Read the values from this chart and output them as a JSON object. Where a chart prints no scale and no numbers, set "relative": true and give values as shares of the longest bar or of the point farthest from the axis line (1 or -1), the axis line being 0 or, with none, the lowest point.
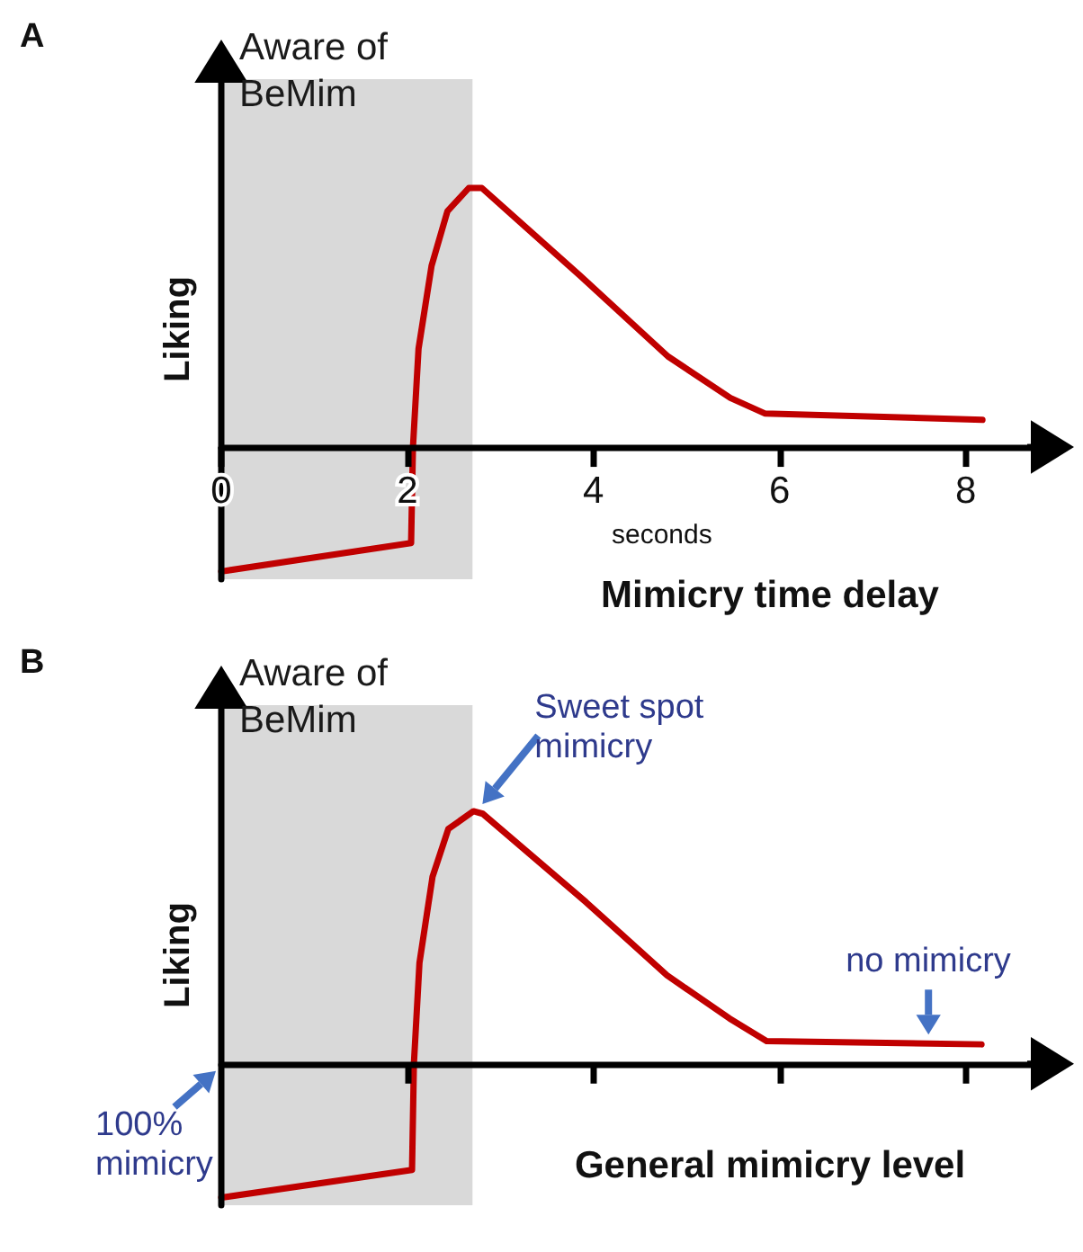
{
  "chart_data": [
    {
      "type": "line",
      "title": "A",
      "xlabel": "Mimicry time delay",
      "ylabel": "Liking",
      "relative": true,
      "color": "#c00000",
      "marker": "none",
      "xlim": [
        0,
        8.7
      ],
      "xticks": [
        0,
        2,
        4,
        6,
        8
      ],
      "x": [
        0,
        2.04,
        2.06,
        2.12,
        2.26,
        2.43,
        2.66,
        2.8,
        3.86,
        4.8,
        5.47,
        5.84,
        8.18
      ],
      "values": [
        -0.48,
        -0.37,
        0,
        0.38,
        0.7,
        0.91,
        1,
        1,
        0.66,
        0.35,
        0.19,
        0.13,
        0.105
      ],
      "bands": [
        {
          "axis": "x",
          "from": 0,
          "to": 2.7,
          "label": "Aware of BeMim",
          "color": "#d9d9d9"
        }
      ],
      "annotations": [
        "seconds"
      ]
    },
    {
      "type": "line",
      "title": "B",
      "xlabel": "General mimicry level",
      "ylabel": "Liking",
      "relative": true,
      "color": "#c00000",
      "marker": "none",
      "tick_labels": false,
      "xlim": [
        0,
        8.7
      ],
      "xticks": [
        2,
        4,
        6,
        8
      ],
      "x": [
        0,
        2.05,
        2.07,
        2.13,
        2.27,
        2.44,
        2.71,
        2.81,
        3.92,
        4.79,
        5.46,
        5.86,
        8.17
      ],
      "values": [
        -0.53,
        -0.42,
        0,
        0.4,
        0.74,
        0.93,
        1,
        0.99,
        0.64,
        0.35,
        0.18,
        0.09,
        0.077
      ],
      "bands": [
        {
          "axis": "x",
          "from": 0,
          "to": 2.7,
          "label": "Aware of BeMim",
          "color": "#d9d9d9"
        }
      ],
      "annotations": [
        {
          "text": "Sweet spot mimicry",
          "x": 2.71,
          "y": 1
        },
        {
          "text": "no mimicry",
          "x": 7.6,
          "y": 0.08
        },
        {
          "text": "100% mimicry",
          "x": 0,
          "y": 0
        }
      ]
    }
  ]
}
